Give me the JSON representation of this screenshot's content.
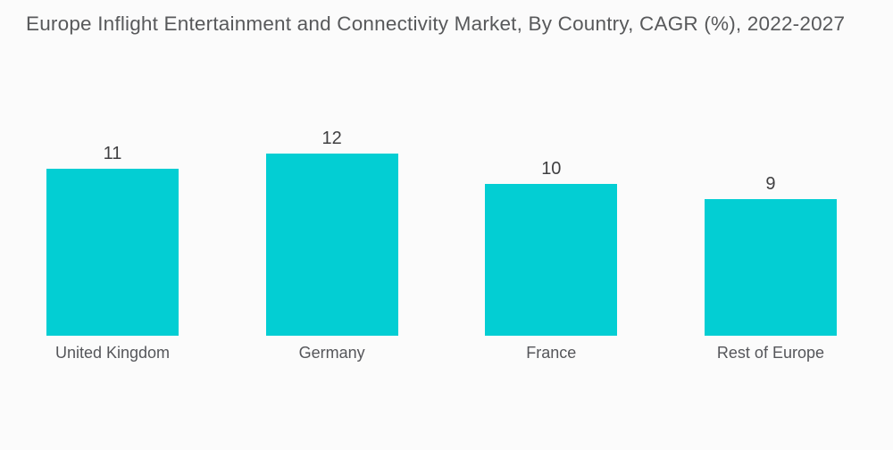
{
  "title": "Europe Inflight Entertainment and Connectivity Market, By Country, CAGR (%), 2022-2027",
  "colors": {
    "bar": "#03CED3",
    "title_text": "#58595B",
    "value_text": "#3F3F41",
    "category_text": "#55565A",
    "background": "#FBFBFB"
  },
  "chart_data": {
    "type": "bar",
    "title": "Europe Inflight Entertainment and Connectivity Market, By Country, CAGR (%), 2022-2027",
    "categories": [
      "United Kingdom",
      "Germany",
      "France",
      "Rest of Europe"
    ],
    "values": [
      11,
      12,
      10,
      9
    ],
    "value_labels": [
      "11",
      "12",
      "10",
      "9"
    ],
    "xlabel": "",
    "ylabel": "",
    "ylim": [
      0,
      12
    ],
    "grid": false,
    "legend": "none",
    "axes_visible": false,
    "bar_color": "#03CED3"
  }
}
